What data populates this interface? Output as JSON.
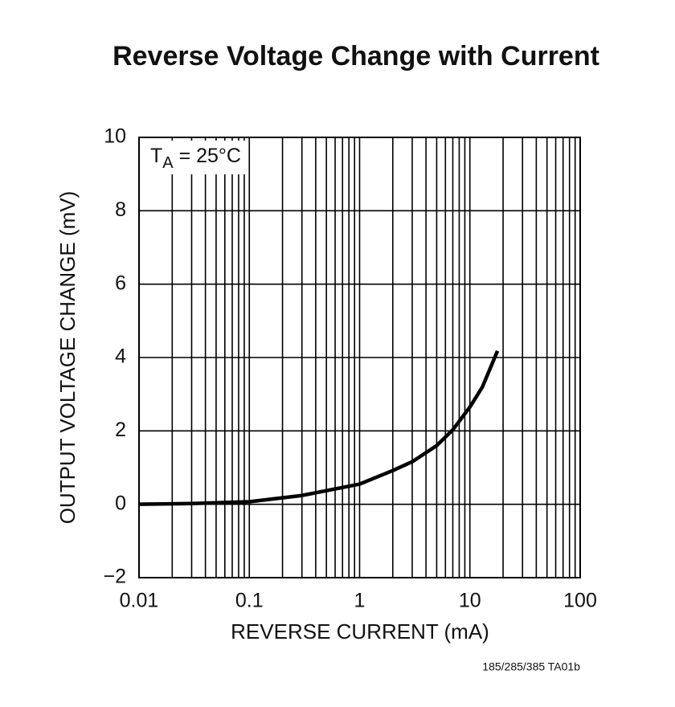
{
  "chart_data": {
    "type": "line",
    "title": "Reverse Voltage Change with Current",
    "xlabel": "REVERSE CURRENT (mA)",
    "ylabel": "OUTPUT VOLTAGE CHANGE (mV)",
    "annotation": {
      "main": "T",
      "subscript": "A",
      "tail": " = 25°C"
    },
    "footnote": "185/285/385 TA01b",
    "xscale": "log",
    "xlim": [
      0.01,
      100
    ],
    "xticks": [
      0.01,
      0.1,
      1,
      10,
      100
    ],
    "x_minor_grid": true,
    "ylim": [
      -2,
      10
    ],
    "yticks": [
      {
        "value": -2,
        "label": "−2"
      },
      0,
      2,
      4,
      6,
      8,
      10
    ],
    "grid": true,
    "x": [
      0.01,
      0.03,
      0.1,
      0.3,
      1,
      2,
      3,
      5,
      7,
      10,
      13,
      17.8
    ],
    "series": [
      {
        "name": "",
        "color": "#000000",
        "values": [
          0.0,
          0.02,
          0.07,
          0.24,
          0.55,
          0.92,
          1.16,
          1.6,
          2.03,
          2.65,
          3.2,
          4.18
        ]
      }
    ]
  }
}
